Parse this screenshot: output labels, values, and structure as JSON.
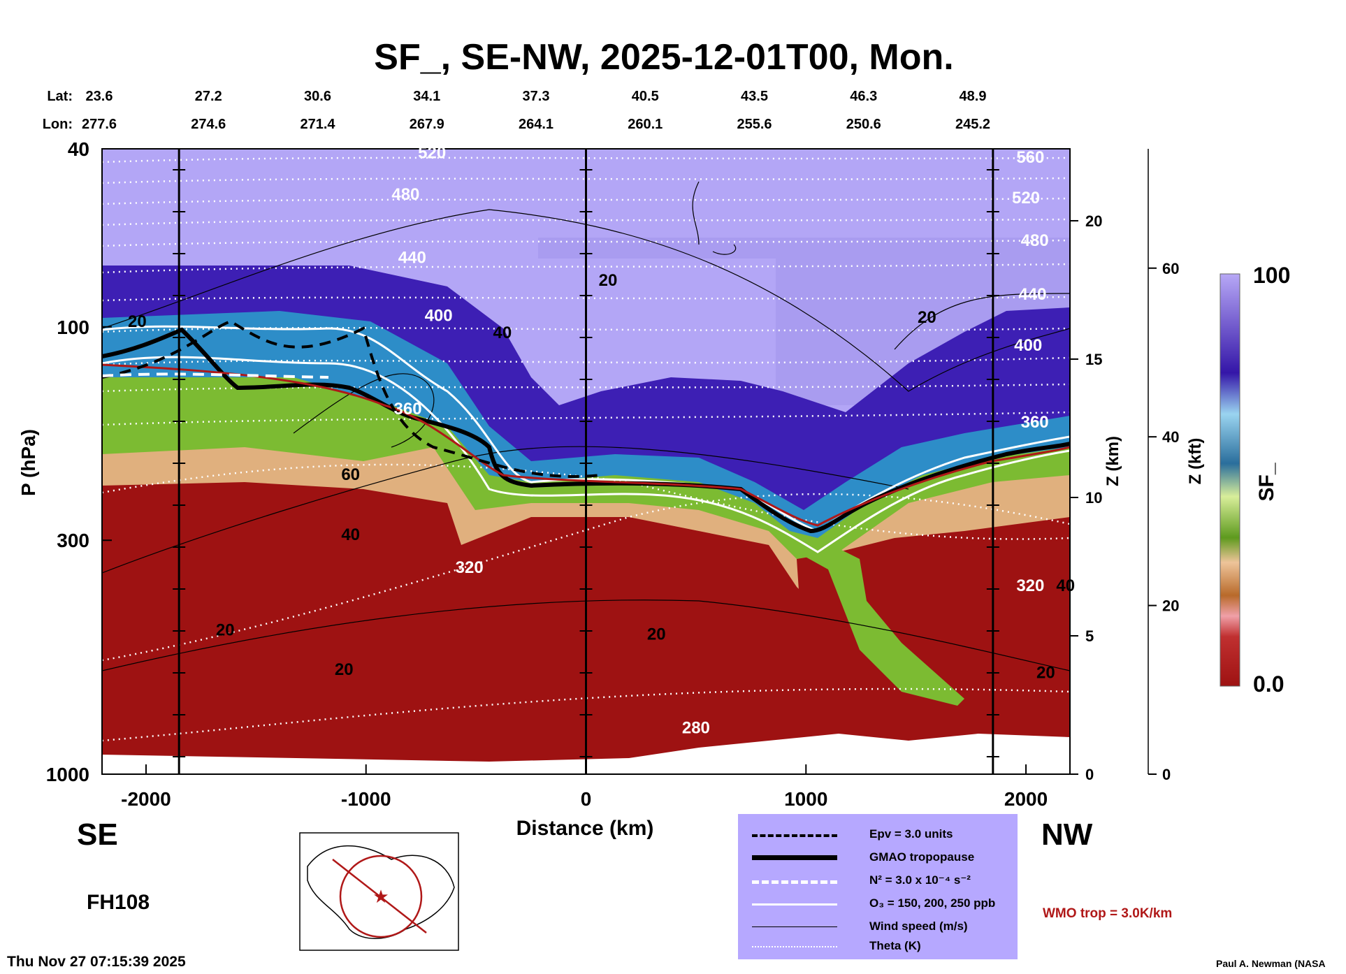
{
  "chart_data": {
    "type": "heatmap",
    "title": "SF_, SE-NW, 2025-12-01T00, Mon.",
    "xlabel": "Distance (km)",
    "ylabel": "P (hPa)",
    "xlim": [
      -2200,
      2200
    ],
    "ylim_pressure": [
      1000,
      40
    ],
    "x_ticks": [
      -2000,
      -1000,
      0,
      1000,
      2000
    ],
    "x_tick_labels": [
      "-2000",
      "-1000",
      "0",
      "1000",
      "2000"
    ],
    "y_ticks": [
      40,
      100,
      300,
      1000
    ],
    "y_tick_labels": [
      "40",
      "100",
      "300",
      "1000"
    ],
    "z_km_axis": {
      "label": "Z (km)",
      "ticks": [
        0,
        5,
        10,
        15,
        20
      ],
      "tick_labels": [
        "0",
        "5",
        "10",
        "15",
        "20"
      ]
    },
    "z_kft_axis": {
      "label": "Z (kft)",
      "ticks": [
        0,
        20,
        40,
        60
      ],
      "tick_labels": [
        "0",
        "20",
        "40",
        "60"
      ]
    },
    "lat_lon": {
      "lat_label": "Lat:",
      "lon_label": "Lon:",
      "lat": [
        "23.6",
        "27.2",
        "30.6",
        "34.1",
        "37.3",
        "40.5",
        "43.5",
        "46.3",
        "48.9"
      ],
      "lon": [
        "277.6",
        "274.6",
        "271.4",
        "267.9",
        "264.1",
        "260.1",
        "255.6",
        "250.6",
        "245.2"
      ]
    },
    "colorbar": {
      "label": "SF_",
      "min": 0.0,
      "max": 100,
      "min_label": "0.0",
      "max_label": "100"
    },
    "theta_contours": [
      {
        "label": "520",
        "x": -700,
        "p": 42
      },
      {
        "label": "480",
        "x": -820,
        "p": 52
      },
      {
        "label": "440",
        "x": -790,
        "p": 72
      },
      {
        "label": "400",
        "x": -670,
        "p": 97
      },
      {
        "label": "360",
        "x": -810,
        "p": 157
      },
      {
        "label": "320",
        "x": -530,
        "p": 355
      },
      {
        "label": "280",
        "x": 500,
        "p": 810
      },
      {
        "label": "560",
        "x": 2020,
        "p": 43
      },
      {
        "label": "520",
        "x": 2000,
        "p": 53
      },
      {
        "label": "480",
        "x": 2040,
        "p": 66
      },
      {
        "label": "440",
        "x": 2030,
        "p": 87
      },
      {
        "label": "400",
        "x": 2010,
        "p": 113
      },
      {
        "label": "360",
        "x": 2040,
        "p": 168
      },
      {
        "label": "320",
        "x": 2020,
        "p": 390
      }
    ],
    "wind_contours": [
      {
        "label": "20",
        "x": -2040,
        "p": 100
      },
      {
        "label": "40",
        "x": -380,
        "p": 106
      },
      {
        "label": "20",
        "x": 100,
        "p": 81
      },
      {
        "label": "60",
        "x": -1070,
        "p": 220
      },
      {
        "label": "40",
        "x": -1070,
        "p": 300
      },
      {
        "label": "20",
        "x": -1640,
        "p": 490
      },
      {
        "label": "20",
        "x": -1100,
        "p": 600
      },
      {
        "label": "20",
        "x": 320,
        "p": 500
      },
      {
        "label": "20",
        "x": 1550,
        "p": 98
      },
      {
        "label": "20",
        "x": 2090,
        "p": 610
      },
      {
        "label": "40",
        "x": 2180,
        "p": 390
      }
    ],
    "section_markers_km": [
      -1850,
      0,
      1850
    ],
    "legend": [
      {
        "label": "Epv = 3.0 units",
        "style": "dashed-black-thick"
      },
      {
        "label": "GMAO tropopause",
        "style": "solid-black-heavy"
      },
      {
        "label": "N² = 3.0 x 10⁻⁴ s⁻²",
        "style": "dashed-white-thick"
      },
      {
        "label": "O₃ = 150, 200, 250 ppb",
        "style": "solid-white"
      },
      {
        "label": "Wind speed (m/s)",
        "style": "solid-black-thin"
      },
      {
        "label": "Theta (K)",
        "style": "dotted-white"
      }
    ],
    "annotation_wmo": "WMO trop = 3.0K/km"
  },
  "labels": {
    "dir_left": "SE",
    "dir_right": "NW",
    "forecast_hour": "FH108",
    "timestamp": "Thu Nov 27 07:15:39 2025",
    "author": "Paul A. Newman (NASA"
  },
  "colors": {
    "strat_purple": "#b3a6f6",
    "band_indigo": "#3d1fb4",
    "band_blue": "#2d8dc8",
    "band_green": "#7cbb32",
    "band_tan": "#e0b07e",
    "tropo_red": "#9e1212",
    "legend_bg": "#b6a8ff",
    "wmo_red": "#b01818"
  }
}
